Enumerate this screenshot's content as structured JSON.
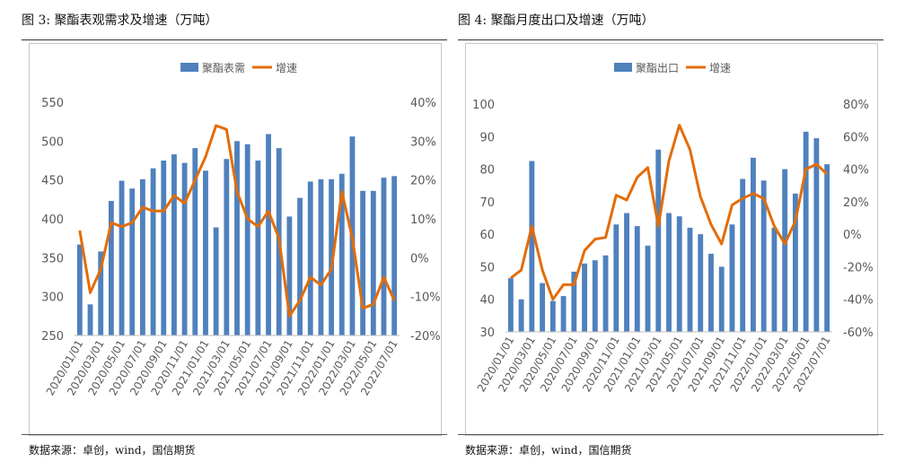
{
  "colors": {
    "bar": "#4f81bd",
    "line": "#e36c09",
    "axis_text": "#595959"
  },
  "chart_data": [
    {
      "type": "bar+line",
      "title": "图 3: 聚酯表观需求及增速（万吨）",
      "source": "数据来源：卓创，wind，国信期货",
      "legend": [
        "聚酯表需",
        "增速"
      ],
      "categories": [
        "2020/01/01",
        "2020/02/01",
        "2020/03/01",
        "2020/04/01",
        "2020/05/01",
        "2020/06/01",
        "2020/07/01",
        "2020/08/01",
        "2020/09/01",
        "2020/10/01",
        "2020/11/01",
        "2020/12/01",
        "2021/01/01",
        "2021/02/01",
        "2021/03/01",
        "2021/04/01",
        "2021/05/01",
        "2021/06/01",
        "2021/07/01",
        "2021/08/01",
        "2021/09/01",
        "2021/10/01",
        "2021/11/01",
        "2021/12/01",
        "2022/01/01",
        "2022/02/01",
        "2022/03/01",
        "2022/04/01",
        "2022/05/01",
        "2022/06/01",
        "2022/07/01"
      ],
      "xtick_labels": [
        "2020/01/01",
        "2020/03/01",
        "2020/05/01",
        "2020/07/01",
        "2020/09/01",
        "2020/11/01",
        "2021/01/01",
        "2021/03/01",
        "2021/05/01",
        "2021/07/01",
        "2021/09/01",
        "2021/11/01",
        "2022/01/01",
        "2022/03/01",
        "2022/05/01",
        "2022/07/01"
      ],
      "series": [
        {
          "name": "聚酯表需",
          "kind": "bar",
          "axis": "left",
          "values": [
            367,
            290,
            358,
            423,
            449,
            439,
            451,
            465,
            475,
            483,
            472,
            491,
            462,
            389,
            477,
            500,
            496,
            475,
            509,
            491,
            403,
            427,
            448,
            451,
            451,
            458,
            506,
            436,
            436,
            453,
            455
          ]
        },
        {
          "name": "增速",
          "kind": "line",
          "axis": "right",
          "values": [
            7,
            -9,
            -3,
            9,
            8,
            9,
            13,
            12,
            12,
            16,
            14,
            20,
            26,
            34,
            33,
            17,
            10,
            8,
            12,
            5,
            -15,
            -11,
            -5,
            -7,
            -3,
            17,
            5,
            -13,
            -12,
            -5,
            -11
          ]
        }
      ],
      "ylim_left": [
        250,
        550
      ],
      "yticks_left": [
        "550",
        "500",
        "450",
        "400",
        "350",
        "300",
        "250"
      ],
      "ylim_right": [
        -20,
        40
      ],
      "yticks_right": [
        "40%",
        "30%",
        "20%",
        "10%",
        "0%",
        "-10%",
        "-20%"
      ]
    },
    {
      "type": "bar+line",
      "title": "图 4: 聚酯月度出口及增速（万吨）",
      "source": "数据来源：卓创，wind，国信期货",
      "legend": [
        "聚酯出口",
        "增速"
      ],
      "categories": [
        "2020/01/01",
        "2020/02/01",
        "2020/03/01",
        "2020/04/01",
        "2020/05/01",
        "2020/06/01",
        "2020/07/01",
        "2020/08/01",
        "2020/09/01",
        "2020/10/01",
        "2020/11/01",
        "2020/12/01",
        "2021/01/01",
        "2021/02/01",
        "2021/03/01",
        "2021/04/01",
        "2021/05/01",
        "2021/06/01",
        "2021/07/01",
        "2021/08/01",
        "2021/09/01",
        "2021/10/01",
        "2021/11/01",
        "2021/12/01",
        "2022/01/01",
        "2022/02/01",
        "2022/03/01",
        "2022/04/01",
        "2022/05/01",
        "2022/06/01",
        "2022/07/01"
      ],
      "xtick_labels": [
        "2020/01/01",
        "2020/03/01",
        "2020/05/01",
        "2020/07/01",
        "2020/09/01",
        "2020/11/01",
        "2021/01/01",
        "2021/03/01",
        "2021/05/01",
        "2021/07/01",
        "2021/09/01",
        "2021/11/01",
        "2022/01/01",
        "2022/03/01",
        "2022/05/01",
        "2022/07/01"
      ],
      "series": [
        {
          "name": "聚酯出口",
          "kind": "bar",
          "axis": "left",
          "values": [
            46.5,
            40,
            82.5,
            45,
            39.5,
            41,
            48.5,
            51,
            52,
            53.5,
            63,
            66.5,
            62.5,
            56.5,
            86,
            66.5,
            65.5,
            62,
            60,
            54,
            50,
            63,
            77,
            83.5,
            76.5,
            62,
            80,
            72.5,
            91.5,
            89.5,
            81.5
          ]
        },
        {
          "name": "增速",
          "kind": "line",
          "axis": "right",
          "values": [
            -27,
            -22,
            5,
            -22,
            -40,
            -31,
            -31,
            -10,
            -3,
            -2,
            24,
            21,
            35,
            41,
            5,
            45,
            67,
            52,
            23,
            6,
            -6,
            18,
            22,
            25,
            22,
            5,
            -6,
            8,
            40,
            43,
            37
          ]
        }
      ],
      "ylim_left": [
        30,
        100
      ],
      "yticks_left": [
        "100",
        "90",
        "80",
        "70",
        "60",
        "50",
        "40",
        "30"
      ],
      "ylim_right": [
        -60,
        80
      ],
      "yticks_right": [
        "80%",
        "60%",
        "40%",
        "20%",
        "0%",
        "-20%",
        "-40%",
        "-60%"
      ]
    }
  ]
}
